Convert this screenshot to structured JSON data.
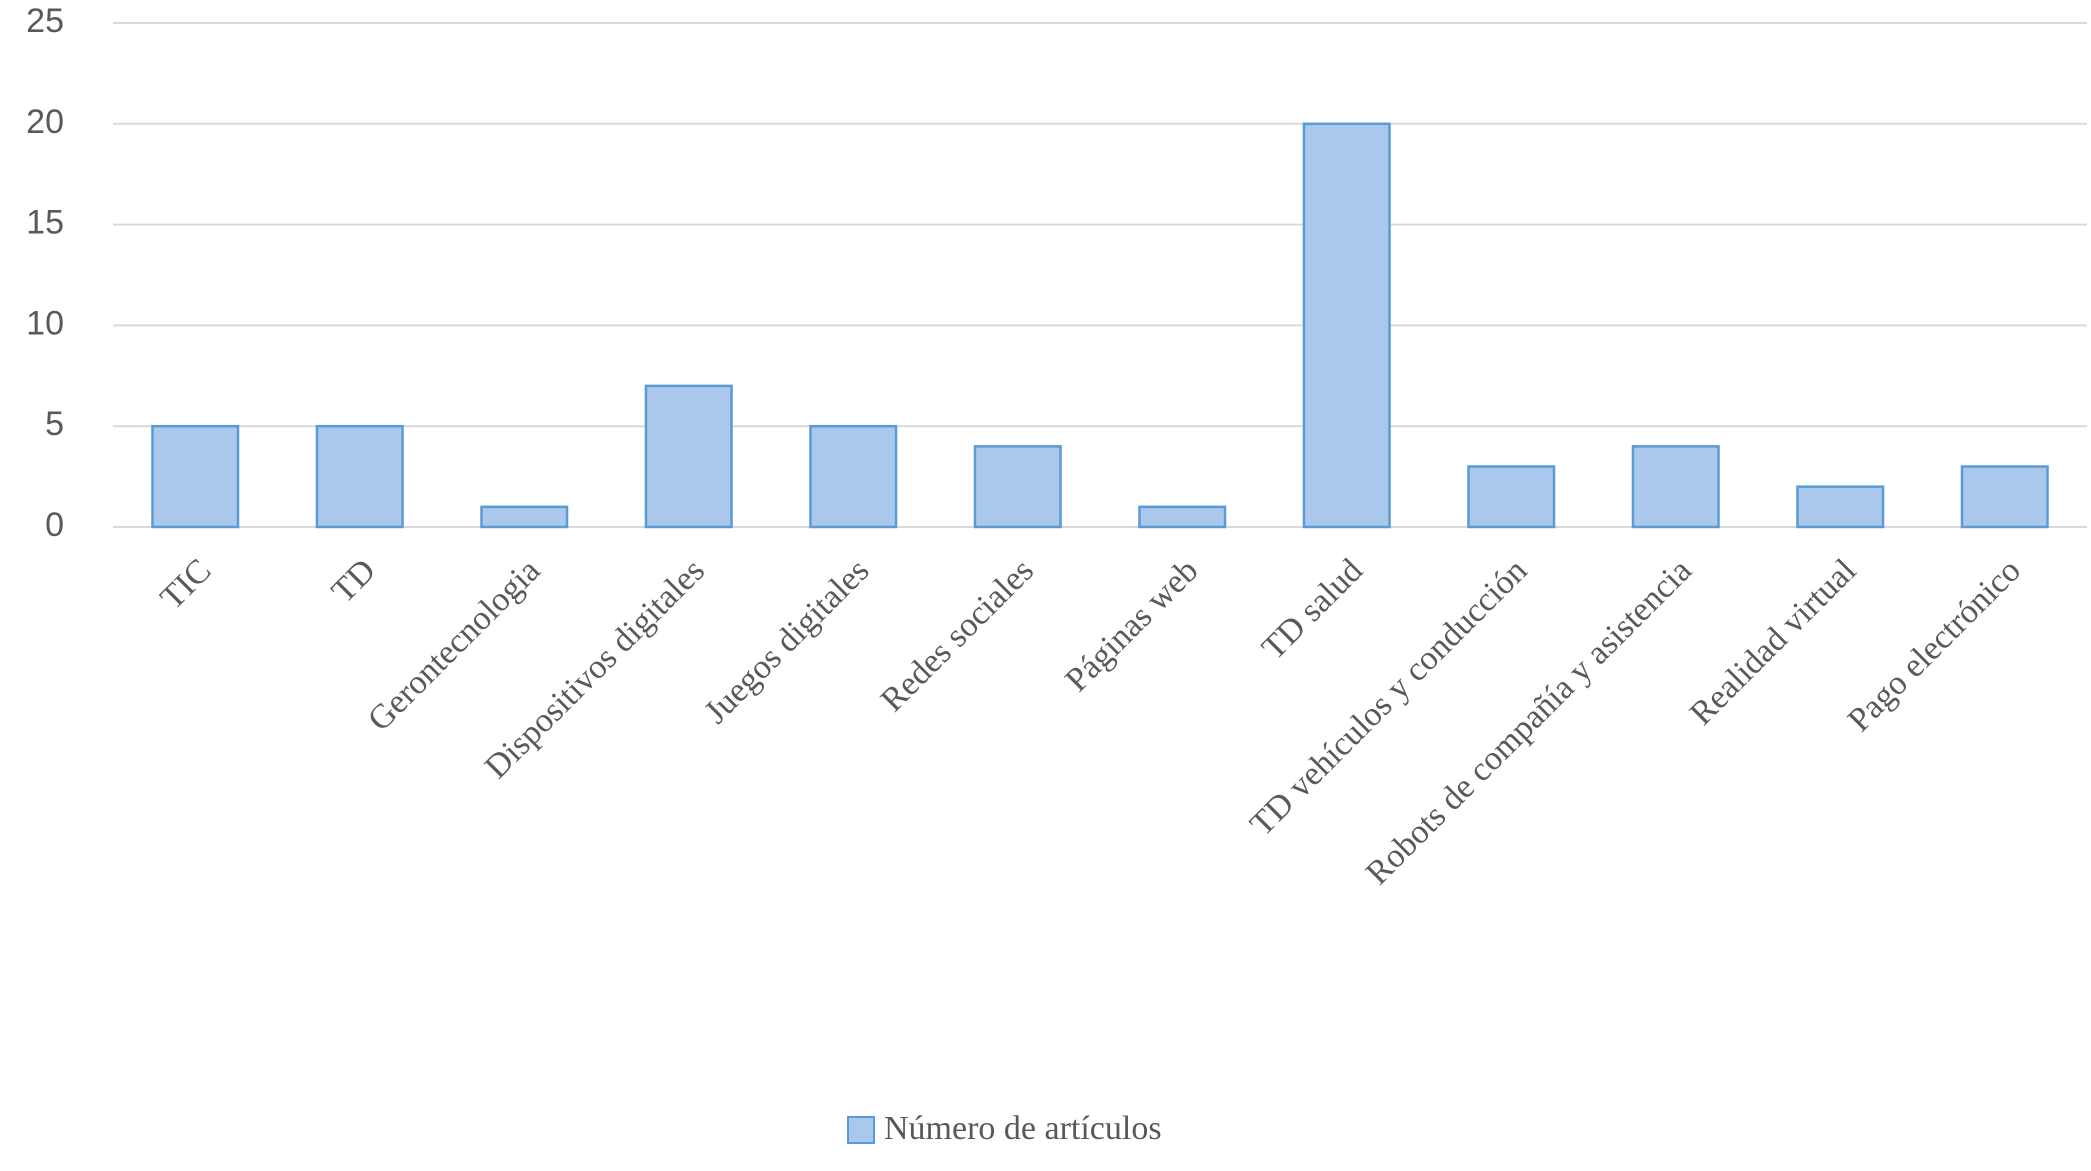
{
  "chart_data": {
    "type": "bar",
    "categories": [
      "TIC",
      "TD",
      "Gerontecnologia",
      "Dispositivos digitales",
      "Juegos digitales",
      "Redes sociales",
      "Páginas web",
      "TD salud",
      "TD vehículos y conducción",
      "Robots de compañía y asistencia",
      "Realidad virtual",
      "Pago electrónico"
    ],
    "series": [
      {
        "name": "Número de artículos",
        "color": "#a9c8eb",
        "values": [
          5,
          5,
          1,
          7,
          5,
          4,
          1,
          20,
          3,
          4,
          2,
          3
        ]
      }
    ],
    "ylim": [
      0,
      25
    ],
    "yticks": [
      0,
      5,
      10,
      15,
      20,
      25
    ],
    "grid": true,
    "legend": "bottom"
  }
}
